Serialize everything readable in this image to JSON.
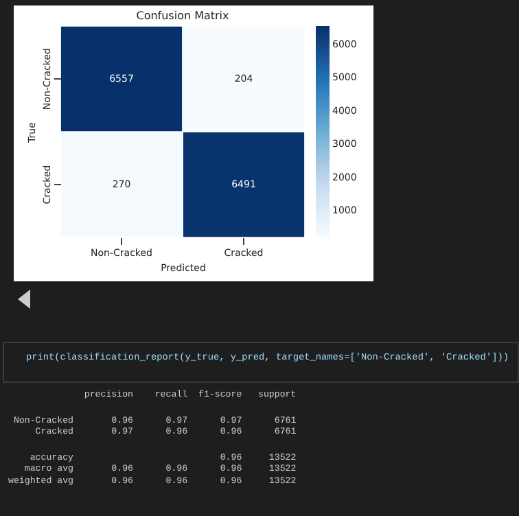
{
  "chart_data": {
    "type": "heatmap",
    "title": "Confusion Matrix",
    "xlabel": "Predicted",
    "ylabel": "True",
    "categories": [
      "Non-Cracked",
      "Cracked"
    ],
    "y_categories": [
      "Non-Cracked",
      "Cracked"
    ],
    "cells": [
      [
        6557,
        204
      ],
      [
        270,
        6491
      ]
    ],
    "data_labels": true,
    "clim": [
      204,
      6557
    ],
    "cticks": [
      1000,
      2000,
      3000,
      4000,
      5000,
      6000
    ],
    "annotations": [
      "print(classification_report(y_true, y_pred, target_names=['Non-Cracked', 'Cracked']))",
      "              precision    recall  f1-score   support",
      " Non-Cracked       0.96      0.97      0.97      6761",
      "     Cracked       0.97      0.96      0.96      6761",
      "    accuracy                           0.96     13522",
      "   macro avg       0.96      0.96      0.96     13522",
      "weighted avg       0.96      0.96      0.96     13522"
    ]
  }
}
